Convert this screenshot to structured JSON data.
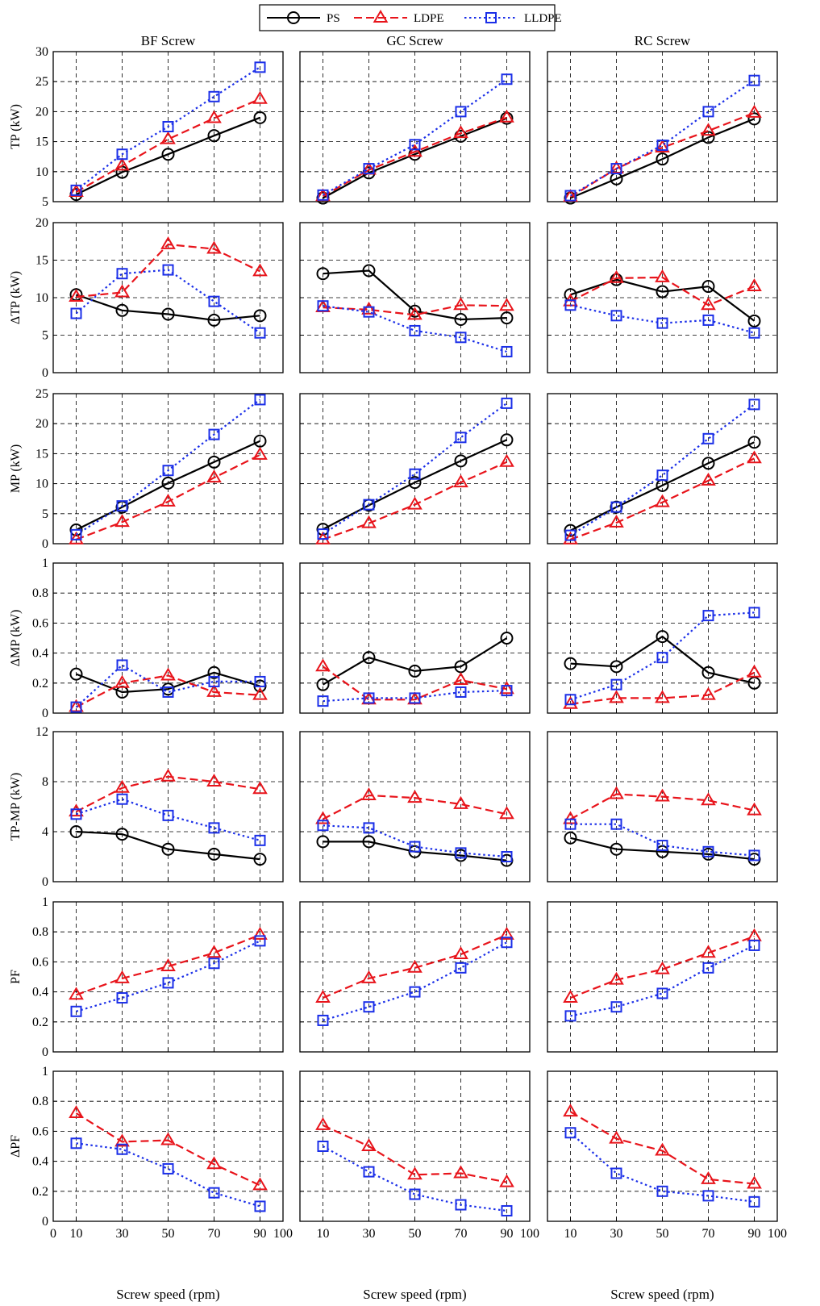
{
  "legend": [
    {
      "label": "PS",
      "color": "#000000",
      "dash": "solid",
      "marker": "circle-icon"
    },
    {
      "label": "LDPE",
      "color": "#e8141b",
      "dash": "dashed",
      "marker": "triangle-icon"
    },
    {
      "label": "LLDPE",
      "color": "#1b2fe8",
      "dash": "dotted",
      "marker": "square-icon"
    }
  ],
  "column_titles": [
    "BF Screw",
    "GC Screw",
    "RC Screw"
  ],
  "xlabel": "Screw speed (rpm)",
  "row_ylabels": [
    "TP (kW)",
    "ΔTP (kW)",
    "MP (kW)",
    "ΔMP (kW)",
    "TP-MP (kW)",
    "PF",
    "ΔPF"
  ],
  "chart_data": {
    "type": "line",
    "layout": "7 rows x 3 columns small multiples",
    "x": [
      10,
      30,
      50,
      70,
      90
    ],
    "xlim": [
      0,
      100
    ],
    "xticks": [
      0,
      10,
      30,
      50,
      70,
      90,
      100
    ],
    "grid": true,
    "legend_position": "top-center",
    "rows": [
      {
        "ylabel": "TP (kW)",
        "ylim": [
          5,
          30
        ],
        "yticks": [
          5,
          10,
          15,
          20,
          25,
          30
        ],
        "panels": [
          {
            "column": "BF Screw",
            "series": [
              {
                "name": "PS",
                "values": [
                  6.2,
                  9.9,
                  12.9,
                  16.0,
                  19.0
                ]
              },
              {
                "name": "LDPE",
                "values": [
                  6.6,
                  11.0,
                  15.4,
                  18.9,
                  22.1
                ]
              },
              {
                "name": "LLDPE",
                "values": [
                  6.9,
                  12.9,
                  17.5,
                  22.5,
                  27.4
                ]
              }
            ]
          },
          {
            "column": "GC Screw",
            "series": [
              {
                "name": "PS",
                "values": [
                  5.6,
                  9.8,
                  12.9,
                  15.9,
                  18.9
                ]
              },
              {
                "name": "LDPE",
                "values": [
                  5.9,
                  10.3,
                  13.3,
                  16.4,
                  19.0
                ]
              },
              {
                "name": "LLDPE",
                "values": [
                  6.1,
                  10.5,
                  14.5,
                  20.0,
                  25.4
                ]
              }
            ]
          },
          {
            "column": "RC Screw",
            "series": [
              {
                "name": "PS",
                "values": [
                  5.6,
                  8.8,
                  12.1,
                  15.7,
                  18.8
                ]
              },
              {
                "name": "LDPE",
                "values": [
                  5.8,
                  10.5,
                  14.0,
                  16.8,
                  19.8
                ]
              },
              {
                "name": "LLDPE",
                "values": [
                  6.0,
                  10.5,
                  14.4,
                  20.0,
                  25.2
                ]
              }
            ]
          }
        ]
      },
      {
        "ylabel": "ΔTP (kW)",
        "ylim": [
          0,
          20
        ],
        "yticks": [
          0,
          5,
          10,
          15,
          20
        ],
        "panels": [
          {
            "column": "BF Screw",
            "series": [
              {
                "name": "PS",
                "values": [
                  10.4,
                  8.3,
                  7.8,
                  7.0,
                  7.6
                ]
              },
              {
                "name": "LDPE",
                "values": [
                  10.1,
                  10.7,
                  17.1,
                  16.5,
                  13.5
                ]
              },
              {
                "name": "LLDPE",
                "values": [
                  7.9,
                  13.2,
                  13.7,
                  9.5,
                  5.3
                ]
              }
            ]
          },
          {
            "column": "GC Screw",
            "series": [
              {
                "name": "PS",
                "values": [
                  13.2,
                  13.6,
                  8.2,
                  7.1,
                  7.3
                ]
              },
              {
                "name": "LDPE",
                "values": [
                  8.7,
                  8.4,
                  7.7,
                  9.0,
                  8.9
                ]
              },
              {
                "name": "LLDPE",
                "values": [
                  8.9,
                  8.1,
                  5.6,
                  4.7,
                  2.8
                ]
              }
            ]
          },
          {
            "column": "RC Screw",
            "series": [
              {
                "name": "PS",
                "values": [
                  10.4,
                  12.4,
                  10.8,
                  11.5,
                  6.9
                ]
              },
              {
                "name": "LDPE",
                "values": [
                  9.5,
                  12.6,
                  12.7,
                  9.0,
                  11.5
                ]
              },
              {
                "name": "LLDPE",
                "values": [
                  9.0,
                  7.6,
                  6.6,
                  7.0,
                  5.3
                ]
              }
            ]
          }
        ]
      },
      {
        "ylabel": "MP (kW)",
        "ylim": [
          0,
          25
        ],
        "yticks": [
          0,
          5,
          10,
          15,
          20,
          25
        ],
        "panels": [
          {
            "column": "BF Screw",
            "series": [
              {
                "name": "PS",
                "values": [
                  2.3,
                  6.1,
                  10.1,
                  13.6,
                  17.1
                ]
              },
              {
                "name": "LDPE",
                "values": [
                  0.7,
                  3.6,
                  7.0,
                  11.0,
                  14.8
                ]
              },
              {
                "name": "LLDPE",
                "values": [
                  1.5,
                  6.3,
                  12.2,
                  18.2,
                  24.0
                ]
              }
            ]
          },
          {
            "column": "GC Screw",
            "series": [
              {
                "name": "PS",
                "values": [
                  2.4,
                  6.4,
                  10.2,
                  13.8,
                  17.3
                ]
              },
              {
                "name": "LDPE",
                "values": [
                  0.7,
                  3.4,
                  6.5,
                  10.2,
                  13.6
                ]
              },
              {
                "name": "LLDPE",
                "values": [
                  1.6,
                  6.5,
                  11.6,
                  17.7,
                  23.4
                ]
              }
            ]
          },
          {
            "column": "RC Screw",
            "series": [
              {
                "name": "PS",
                "values": [
                  2.2,
                  6.1,
                  9.7,
                  13.4,
                  16.9
                ]
              },
              {
                "name": "LDPE",
                "values": [
                  0.7,
                  3.5,
                  6.9,
                  10.5,
                  14.2
                ]
              },
              {
                "name": "LLDPE",
                "values": [
                  1.4,
                  6.1,
                  11.4,
                  17.5,
                  23.2
                ]
              }
            ]
          }
        ]
      },
      {
        "ylabel": "ΔMP (kW)",
        "ylim": [
          0,
          1
        ],
        "yticks": [
          0,
          0.2,
          0.4,
          0.6,
          0.8,
          1
        ],
        "panels": [
          {
            "column": "BF Screw",
            "series": [
              {
                "name": "PS",
                "values": [
                  0.26,
                  0.14,
                  0.16,
                  0.27,
                  0.18
                ]
              },
              {
                "name": "LDPE",
                "values": [
                  0.04,
                  0.2,
                  0.25,
                  0.14,
                  0.12
                ]
              },
              {
                "name": "LLDPE",
                "values": [
                  0.04,
                  0.32,
                  0.14,
                  0.21,
                  0.21
                ]
              }
            ]
          },
          {
            "column": "GC Screw",
            "series": [
              {
                "name": "PS",
                "values": [
                  0.19,
                  0.37,
                  0.28,
                  0.31,
                  0.5
                ]
              },
              {
                "name": "LDPE",
                "values": [
                  0.31,
                  0.09,
                  0.09,
                  0.22,
                  0.16
                ]
              },
              {
                "name": "LLDPE",
                "values": [
                  0.08,
                  0.1,
                  0.1,
                  0.14,
                  0.15
                ]
              }
            ]
          },
          {
            "column": "RC Screw",
            "series": [
              {
                "name": "PS",
                "values": [
                  0.33,
                  0.31,
                  0.51,
                  0.27,
                  0.2
                ]
              },
              {
                "name": "LDPE",
                "values": [
                  0.06,
                  0.1,
                  0.1,
                  0.12,
                  0.27
                ]
              },
              {
                "name": "LLDPE",
                "values": [
                  0.09,
                  0.19,
                  0.37,
                  0.65,
                  0.67
                ]
              }
            ]
          }
        ]
      },
      {
        "ylabel": "TP-MP (kW)",
        "ylim": [
          0,
          12
        ],
        "yticks": [
          0,
          4,
          8,
          12
        ],
        "panels": [
          {
            "column": "BF Screw",
            "series": [
              {
                "name": "PS",
                "values": [
                  4.0,
                  3.8,
                  2.6,
                  2.2,
                  1.8
                ]
              },
              {
                "name": "LDPE",
                "values": [
                  5.6,
                  7.5,
                  8.4,
                  8.0,
                  7.4
                ]
              },
              {
                "name": "LLDPE",
                "values": [
                  5.4,
                  6.6,
                  5.3,
                  4.3,
                  3.3
                ]
              }
            ]
          },
          {
            "column": "GC Screw",
            "series": [
              {
                "name": "PS",
                "values": [
                  3.2,
                  3.2,
                  2.4,
                  2.1,
                  1.7
                ]
              },
              {
                "name": "LDPE",
                "values": [
                  5.0,
                  6.9,
                  6.7,
                  6.2,
                  5.4
                ]
              },
              {
                "name": "LLDPE",
                "values": [
                  4.5,
                  4.3,
                  2.8,
                  2.3,
                  2.0
                ]
              }
            ]
          },
          {
            "column": "RC Screw",
            "series": [
              {
                "name": "PS",
                "values": [
                  3.5,
                  2.6,
                  2.4,
                  2.2,
                  1.8
                ]
              },
              {
                "name": "LDPE",
                "values": [
                  5.0,
                  7.0,
                  6.8,
                  6.5,
                  5.7
                ]
              },
              {
                "name": "LLDPE",
                "values": [
                  4.6,
                  4.6,
                  2.9,
                  2.4,
                  2.1
                ]
              }
            ]
          }
        ]
      },
      {
        "ylabel": "PF",
        "ylim": [
          0,
          1
        ],
        "yticks": [
          0,
          0.2,
          0.4,
          0.6,
          0.8,
          1
        ],
        "panels": [
          {
            "column": "BF Screw",
            "series": [
              {
                "name": "LDPE",
                "values": [
                  0.38,
                  0.49,
                  0.57,
                  0.66,
                  0.78
                ]
              },
              {
                "name": "LLDPE",
                "values": [
                  0.27,
                  0.36,
                  0.46,
                  0.59,
                  0.74
                ]
              }
            ]
          },
          {
            "column": "GC Screw",
            "series": [
              {
                "name": "LDPE",
                "values": [
                  0.36,
                  0.49,
                  0.56,
                  0.65,
                  0.78
                ]
              },
              {
                "name": "LLDPE",
                "values": [
                  0.21,
                  0.3,
                  0.4,
                  0.56,
                  0.73
                ]
              }
            ]
          },
          {
            "column": "RC Screw",
            "series": [
              {
                "name": "LDPE",
                "values": [
                  0.36,
                  0.48,
                  0.55,
                  0.66,
                  0.77
                ]
              },
              {
                "name": "LLDPE",
                "values": [
                  0.24,
                  0.3,
                  0.39,
                  0.56,
                  0.71
                ]
              }
            ]
          }
        ]
      },
      {
        "ylabel": "ΔPF",
        "ylim": [
          0,
          1
        ],
        "yticks": [
          0,
          0.2,
          0.4,
          0.6,
          0.8,
          1
        ],
        "panels": [
          {
            "column": "BF Screw",
            "series": [
              {
                "name": "LDPE",
                "values": [
                  0.72,
                  0.53,
                  0.54,
                  0.38,
                  0.24
                ]
              },
              {
                "name": "LLDPE",
                "values": [
                  0.52,
                  0.48,
                  0.35,
                  0.19,
                  0.1
                ]
              }
            ]
          },
          {
            "column": "GC Screw",
            "series": [
              {
                "name": "LDPE",
                "values": [
                  0.64,
                  0.5,
                  0.31,
                  0.32,
                  0.26
                ]
              },
              {
                "name": "LLDPE",
                "values": [
                  0.5,
                  0.33,
                  0.18,
                  0.11,
                  0.07
                ]
              }
            ]
          },
          {
            "column": "RC Screw",
            "series": [
              {
                "name": "LDPE",
                "values": [
                  0.73,
                  0.55,
                  0.47,
                  0.28,
                  0.25
                ]
              },
              {
                "name": "LLDPE",
                "values": [
                  0.59,
                  0.32,
                  0.2,
                  0.17,
                  0.13
                ]
              }
            ]
          }
        ]
      }
    ]
  }
}
